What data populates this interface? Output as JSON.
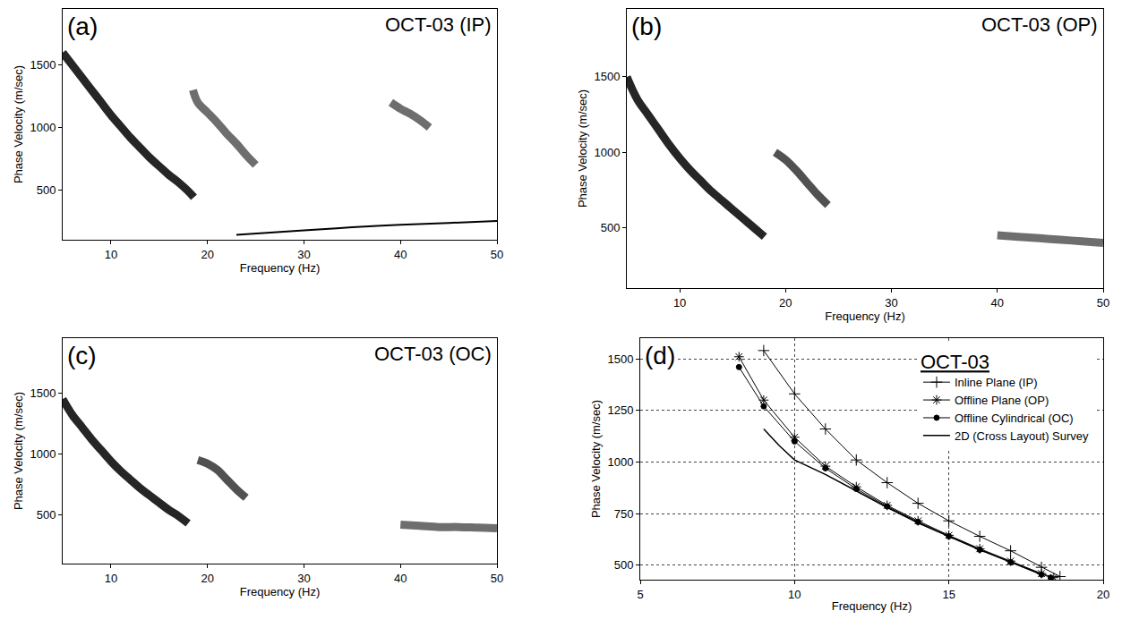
{
  "chart_data": [
    {
      "type": "line",
      "title": "OCT-03 (IP)",
      "annotations": [
        "(a)"
      ],
      "x_label": "Frequency (Hz)",
      "y_label": "Phase Velocity (m/sec)",
      "xlim": [
        5,
        50
      ],
      "xticks": [
        10,
        20,
        30,
        40,
        50
      ],
      "ylim": [
        100,
        1950
      ],
      "yticks": [
        500,
        1000,
        1500
      ],
      "grid": false,
      "series": [
        {
          "color": "#000000",
          "line_style": "solid",
          "x": [
            5,
            6,
            7,
            8,
            9,
            10,
            11,
            12,
            13,
            14,
            15,
            16,
            17,
            18,
            18.6
          ],
          "values": [
            1600,
            1500,
            1400,
            1300,
            1200,
            1100,
            1010,
            920,
            840,
            760,
            690,
            620,
            560,
            490,
            440
          ]
        },
        {
          "color": "#555555",
          "line_style": "solid",
          "x": [
            18.5,
            19,
            20,
            21,
            22,
            23,
            24,
            25
          ],
          "values": [
            1300,
            1200,
            1120,
            1040,
            950,
            870,
            780,
            700
          ]
        },
        {
          "color": "#555555",
          "line_style": "solid",
          "x": [
            39,
            40,
            41,
            42,
            43
          ],
          "values": [
            1200,
            1150,
            1110,
            1060,
            1000
          ]
        },
        {
          "color": "#000000",
          "line_style": "thin",
          "x": [
            23,
            30,
            35,
            40,
            45,
            50
          ],
          "values": [
            140,
            175,
            200,
            220,
            235,
            250
          ]
        }
      ]
    },
    {
      "type": "line",
      "title": "OCT-03 (OP)",
      "annotations": [
        "(b)"
      ],
      "x_label": "Frequency (Hz)",
      "y_label": "Phase Velocity (m/sec)",
      "xlim": [
        5,
        50
      ],
      "xticks": [
        10,
        20,
        30,
        40,
        50
      ],
      "ylim": [
        100,
        1950
      ],
      "yticks": [
        500,
        1000,
        1500
      ],
      "grid": false,
      "series": [
        {
          "color": "#000000",
          "line_style": "solid",
          "x": [
            5,
            6,
            7,
            8,
            9,
            10,
            11,
            12,
            13,
            14,
            15,
            16,
            17,
            18
          ],
          "values": [
            1500,
            1350,
            1250,
            1150,
            1050,
            960,
            880,
            810,
            740,
            680,
            620,
            560,
            500,
            440
          ]
        },
        {
          "color": "#333333",
          "line_style": "solid",
          "x": [
            19,
            20,
            21,
            22,
            23,
            24
          ],
          "values": [
            1000,
            950,
            880,
            800,
            720,
            650
          ]
        },
        {
          "color": "#555555",
          "line_style": "solid",
          "x": [
            40,
            42,
            44,
            46,
            48,
            50
          ],
          "values": [
            450,
            440,
            430,
            420,
            410,
            400
          ]
        }
      ]
    },
    {
      "type": "line",
      "title": "OCT-03 (OC)",
      "annotations": [
        "(c)"
      ],
      "x_label": "Frequency (Hz)",
      "y_label": "Phase Velocity (m/sec)",
      "xlim": [
        5,
        50
      ],
      "xticks": [
        10,
        20,
        30,
        40,
        50
      ],
      "ylim": [
        100,
        1950
      ],
      "yticks": [
        500,
        1000,
        1500
      ],
      "grid": false,
      "series": [
        {
          "color": "#000000",
          "line_style": "solid",
          "x": [
            5,
            6,
            7,
            8,
            9,
            10,
            11,
            12,
            13,
            14,
            15,
            16,
            17,
            18
          ],
          "values": [
            1450,
            1320,
            1220,
            1120,
            1030,
            940,
            860,
            790,
            720,
            660,
            600,
            540,
            490,
            430
          ]
        },
        {
          "color": "#333333",
          "line_style": "solid",
          "x": [
            19,
            20,
            21,
            22,
            23,
            24
          ],
          "values": [
            950,
            920,
            870,
            790,
            710,
            640
          ]
        },
        {
          "color": "#555555",
          "line_style": "solid",
          "x": [
            40,
            42,
            44,
            46,
            48,
            50
          ],
          "values": [
            420,
            410,
            400,
            400,
            395,
            390
          ]
        }
      ]
    },
    {
      "type": "line",
      "title": "OCT-03",
      "annotations": [
        "(d)"
      ],
      "x_label": "Frequency (Hz)",
      "y_label": "Phase Velocity (m/sec)",
      "xlim": [
        5,
        20
      ],
      "xticks": [
        5,
        10,
        15,
        20
      ],
      "ylim": [
        430,
        1600
      ],
      "yticks": [
        500,
        750,
        1000,
        1250,
        1500
      ],
      "grid": true,
      "legend": "upper right",
      "series": [
        {
          "name": "Inline Plane (IP)",
          "color": "#000000",
          "marker": "cross",
          "line_style": "solid",
          "x": [
            9,
            10,
            11,
            12,
            13,
            14,
            15,
            16,
            17,
            18,
            18.6
          ],
          "values": [
            1540,
            1330,
            1160,
            1010,
            900,
            800,
            715,
            640,
            570,
            490,
            445
          ]
        },
        {
          "name": "Offline Plane (OP)",
          "color": "#000000",
          "marker": "asterisk",
          "line_style": "solid",
          "x": [
            8.2,
            9,
            10,
            11,
            12,
            13,
            14,
            15,
            16,
            17,
            18,
            18.4
          ],
          "values": [
            1510,
            1300,
            1120,
            980,
            880,
            790,
            715,
            645,
            580,
            520,
            460,
            440
          ]
        },
        {
          "name": "Offline Cylindrical (OC)",
          "color": "#000000",
          "marker": "circle",
          "line_style": "solid",
          "x": [
            8.2,
            9,
            10,
            11,
            12,
            13,
            14,
            15,
            16,
            17,
            18,
            18.3
          ],
          "values": [
            1460,
            1270,
            1100,
            970,
            870,
            785,
            710,
            640,
            575,
            515,
            455,
            440
          ]
        },
        {
          "name": "2D (Cross Layout) Survey",
          "color": "#000000",
          "line_style": "solid",
          "x": [
            9,
            9.5,
            10,
            11,
            12,
            13,
            14,
            15,
            16,
            17,
            18
          ],
          "values": [
            1160,
            1080,
            1010,
            940,
            860,
            780,
            705,
            640,
            575,
            515,
            455
          ]
        }
      ]
    }
  ]
}
